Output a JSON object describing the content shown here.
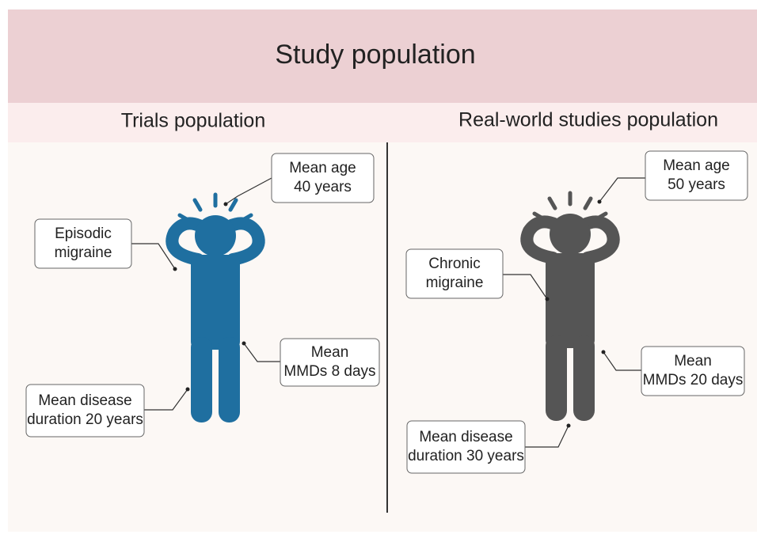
{
  "header": {
    "title": "Study population"
  },
  "panels": [
    {
      "title": "Trials population",
      "callouts": [
        {
          "lines": [
            "Mean age",
            "40 years"
          ]
        },
        {
          "lines": [
            "Episodic",
            "migraine"
          ]
        },
        {
          "lines": [
            "Mean",
            "MMDs 8 days"
          ]
        },
        {
          "lines": [
            "Mean disease",
            "duration 20 years"
          ]
        }
      ]
    },
    {
      "title": "Real-world studies population",
      "callouts": [
        {
          "lines": [
            "Mean age",
            "50 years"
          ]
        },
        {
          "lines": [
            "Chronic",
            "migraine"
          ]
        },
        {
          "lines": [
            "Mean",
            "MMDs 20 days"
          ]
        },
        {
          "lines": [
            "Mean disease",
            "duration 30 years"
          ]
        }
      ]
    }
  ]
}
